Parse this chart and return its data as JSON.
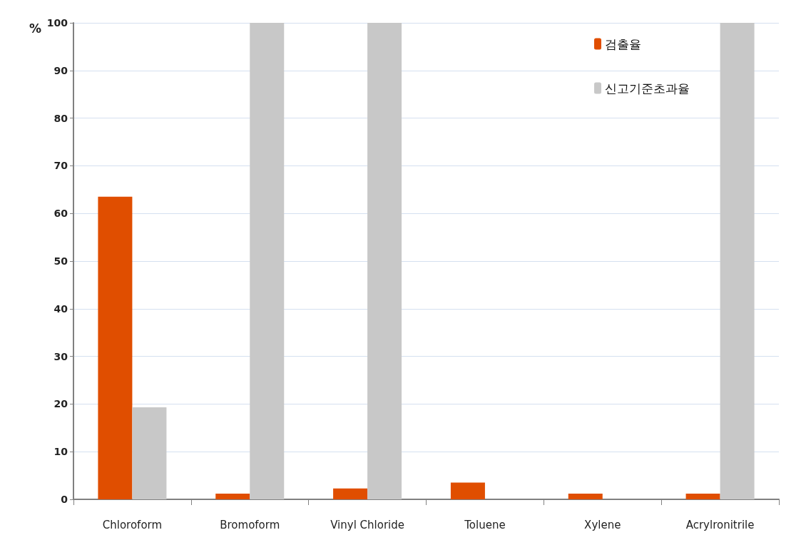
{
  "chart_data": {
    "type": "bar",
    "ylabel": "%",
    "categories": [
      "Chloroform",
      "Bromoform",
      "Vinyl Chloride",
      "Toluene",
      "Xylene",
      "Acrylronitrile"
    ],
    "series": [
      {
        "name": "검출율",
        "color": "#e04e00",
        "values": [
          63.5,
          1.2,
          2.3,
          3.5,
          1.2,
          1.2
        ]
      },
      {
        "name": "신고기준초과율",
        "color": "#c8c8c8",
        "values": [
          19.3,
          100,
          100,
          0,
          0,
          100
        ]
      }
    ],
    "ylim": [
      0,
      100
    ],
    "yticks": [
      0,
      10,
      20,
      30,
      40,
      50,
      60,
      70,
      80,
      90,
      100
    ],
    "grid": "y",
    "legend": "top right"
  }
}
